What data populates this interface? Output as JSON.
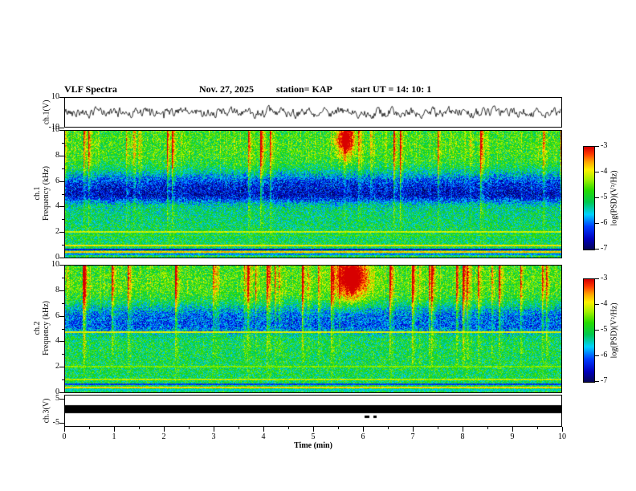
{
  "header": {
    "title": "VLF Spectra",
    "date": "Nov. 27, 2025",
    "station": "station= KAP",
    "start_ut": "start UT =   14: 10: 1"
  },
  "panels": {
    "ch1_wave": {
      "label": "ch.1(V)",
      "ymax": "10",
      "ymin": "-10"
    },
    "ch1_spec": {
      "label_line1": "ch.1",
      "label_line2": "Frequency (kHz)"
    },
    "ch2_spec": {
      "label_line1": "ch.2",
      "label_line2": "Frequency (kHz)"
    },
    "ch3_wave": {
      "label": "ch.3(V)",
      "ymax": "5",
      "ymin": "-5"
    }
  },
  "axes": {
    "freq_ticks": [
      "10",
      "8",
      "6",
      "4",
      "2",
      "0"
    ],
    "x_ticks": [
      "0",
      "1",
      "2",
      "3",
      "4",
      "5",
      "6",
      "7",
      "8",
      "9",
      "10"
    ],
    "x_label": "Time (min)"
  },
  "colorbar": {
    "ticks": [
      "-3",
      "-4",
      "-5",
      "-6",
      "-7"
    ],
    "label": "log(PSD)(V²/Hz)"
  },
  "chart_data": [
    {
      "type": "line",
      "title": "ch.1 time series",
      "xlabel": "Time (min)",
      "ylabel": "ch.1 (V)",
      "xlim": [
        0,
        10
      ],
      "ylim": [
        -10,
        10
      ],
      "description": "Continuous broadband noise waveform fluctuating roughly between -8 and +8 V across the full 10 minute record; individual samples not resolvable."
    },
    {
      "type": "heatmap",
      "title": "ch.1 spectrogram",
      "xlabel": "Time (min)",
      "ylabel": "Frequency (kHz)",
      "xlim": [
        0,
        10
      ],
      "ylim": [
        0,
        10
      ],
      "zlabel": "log(PSD)(V²/Hz)",
      "zlim": [
        -7,
        -3
      ],
      "colormap": [
        "#000060",
        "#0000ff",
        "#00ffff",
        "#00c800",
        "#ffff00",
        "#ff8000",
        "#ff0000"
      ],
      "legend_position": "right colorbar",
      "features": [
        "green speckled background near log PSD ≈ -5",
        "blue/cyan low-power band between about 4.5 and 6.5 kHz",
        "dense vertical red/yellow sferic bursts, strongest above 5 kHz, throughout the record",
        "bright red high-power patch near t ≈ 5.6 min between 8.5 and 10 kHz",
        "horizontal interference lines near 2.0, 1.7, 1.0, 0.6, 0.4 and 0.2 kHz"
      ]
    },
    {
      "type": "heatmap",
      "title": "ch.2 spectrogram",
      "xlabel": "Time (min)",
      "ylabel": "Frequency (kHz)",
      "xlim": [
        0,
        10
      ],
      "ylim": [
        0,
        10
      ],
      "zlabel": "log(PSD)(V²/Hz)",
      "zlim": [
        -7,
        -3
      ],
      "colormap": [
        "#000060",
        "#0000ff",
        "#00ffff",
        "#00c800",
        "#ffff00",
        "#ff8000",
        "#ff0000"
      ],
      "legend_position": "right colorbar",
      "features": [
        "green speckled background near log PSD ≈ -5",
        "weaker cyan band between about 5 and 6.5 kHz",
        "continuous horizontal line near 4.7 kHz",
        "stronger, deeper-reaching vertical red burst columns than ch.1",
        "large red burst cluster near t ≈ 5.7 min above 8 kHz",
        "layered horizontal interference stripes below 1 kHz"
      ]
    },
    {
      "type": "line",
      "title": "ch.3 time series",
      "xlabel": "Time (min)",
      "ylabel": "ch.3 (V)",
      "xlim": [
        0,
        10
      ],
      "ylim": [
        -5,
        5
      ],
      "description": "Saturated flat trace rendered as a solid black band at roughly +0.5 to +1.5 V across the whole 10 minute interval."
    }
  ]
}
